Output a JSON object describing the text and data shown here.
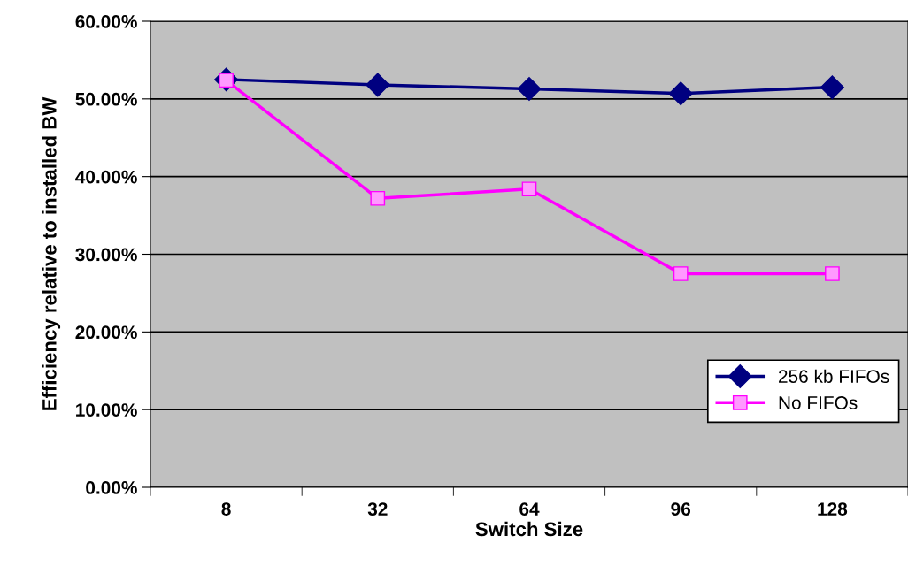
{
  "chart_data": {
    "type": "line",
    "xlabel": "Switch Size",
    "ylabel": "Efficiency relative to installed BW",
    "categories": [
      "8",
      "32",
      "64",
      "96",
      "128"
    ],
    "series": [
      {
        "name": "256 kb FIFOs",
        "color": "#000080",
        "marker": "diamond",
        "values": [
          52.5,
          51.8,
          51.3,
          50.7,
          51.5
        ]
      },
      {
        "name": "No FIFOs",
        "color": "#ff00ff",
        "marker": "square",
        "values": [
          52.4,
          37.2,
          38.4,
          27.5,
          27.5
        ]
      }
    ],
    "ylim": [
      0,
      60
    ],
    "yticks": [
      {
        "value": 0,
        "label": "0.00%"
      },
      {
        "value": 10,
        "label": "10.00%"
      },
      {
        "value": 20,
        "label": "20.00%"
      },
      {
        "value": 30,
        "label": "30.00%"
      },
      {
        "value": 40,
        "label": "40.00%"
      },
      {
        "value": 50,
        "label": "50.00%"
      },
      {
        "value": 60,
        "label": "60.00%"
      }
    ],
    "grid": "y",
    "legend": "bottom right",
    "line_style": "solid"
  }
}
